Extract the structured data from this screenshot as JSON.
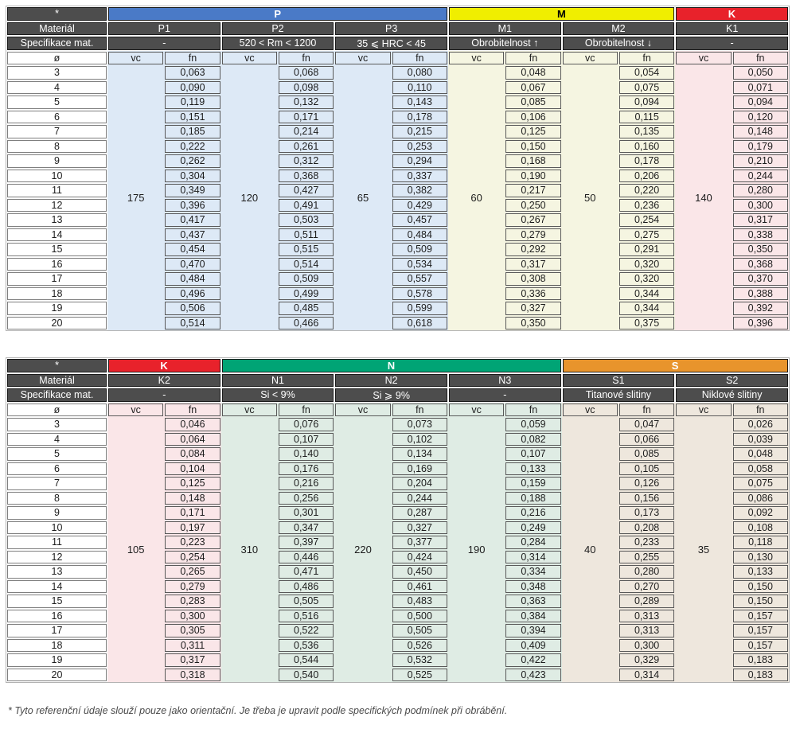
{
  "footnote": "* Tyto referenční údaje slouží pouze jako orientační. Je třeba je upravit podle specifických podmínek při obrábění.",
  "labels": {
    "corner": "*",
    "material_row": "Materiál",
    "spec_row": "Specifikace mat.",
    "diameter": "ø",
    "vc": "vc",
    "fn": "fn"
  },
  "diameters": [
    "3",
    "4",
    "5",
    "6",
    "7",
    "8",
    "9",
    "10",
    "11",
    "12",
    "13",
    "14",
    "15",
    "16",
    "17",
    "18",
    "19",
    "20"
  ],
  "colors": {
    "header_dark": "#4d4d4d",
    "p_blue": "#4a7ac7",
    "m_yellow": "#f0ee00",
    "k_red": "#e8222b",
    "n_green": "#00a475",
    "s_orange": "#e8942c"
  },
  "tables": [
    {
      "groups": [
        {
          "label": "P",
          "header_bg": "#4a7ac7",
          "header_fg": "#ffffff",
          "cell_bg": "#dde9f6",
          "materials": [
            {
              "name": "P1",
              "spec": "-",
              "vc": "175",
              "fn": [
                "0,063",
                "0,090",
                "0,119",
                "0,151",
                "0,185",
                "0,222",
                "0,262",
                "0,304",
                "0,349",
                "0,396",
                "0,417",
                "0,437",
                "0,454",
                "0,470",
                "0,484",
                "0,496",
                "0,506",
                "0,514"
              ]
            },
            {
              "name": "P2",
              "spec": "520 < Rm < 1200",
              "vc": "120",
              "fn": [
                "0,068",
                "0,098",
                "0,132",
                "0,171",
                "0,214",
                "0,261",
                "0,312",
                "0,368",
                "0,427",
                "0,491",
                "0,503",
                "0,511",
                "0,515",
                "0,514",
                "0,509",
                "0,499",
                "0,485",
                "0,466"
              ]
            },
            {
              "name": "P3",
              "spec": "35 ⩽ HRC < 45",
              "vc": "65",
              "fn": [
                "0,080",
                "0,110",
                "0,143",
                "0,178",
                "0,215",
                "0,253",
                "0,294",
                "0,337",
                "0,382",
                "0,429",
                "0,457",
                "0,484",
                "0,509",
                "0,534",
                "0,557",
                "0,578",
                "0,599",
                "0,618"
              ]
            }
          ]
        },
        {
          "label": "M",
          "header_bg": "#f0ee00",
          "header_fg": "#000000",
          "cell_bg": "#f5f5e1",
          "materials": [
            {
              "name": "M1",
              "spec": "Obrobitelnost ↑",
              "vc": "60",
              "fn": [
                "0,048",
                "0,067",
                "0,085",
                "0,106",
                "0,125",
                "0,150",
                "0,168",
                "0,190",
                "0,217",
                "0,250",
                "0,267",
                "0,279",
                "0,292",
                "0,317",
                "0,308",
                "0,336",
                "0,327",
                "0,350"
              ]
            },
            {
              "name": "M2",
              "spec": "Obrobitelnost ↓",
              "vc": "50",
              "fn": [
                "0,054",
                "0,075",
                "0,094",
                "0,115",
                "0,135",
                "0,160",
                "0,178",
                "0,206",
                "0,220",
                "0,236",
                "0,254",
                "0,275",
                "0,291",
                "0,320",
                "0,320",
                "0,344",
                "0,344",
                "0,375"
              ]
            }
          ]
        },
        {
          "label": "K",
          "header_bg": "#e8222b",
          "header_fg": "#ffffff",
          "cell_bg": "#fae6e8",
          "materials": [
            {
              "name": "K1",
              "spec": "-",
              "vc": "140",
              "fn": [
                "0,050",
                "0,071",
                "0,094",
                "0,120",
                "0,148",
                "0,179",
                "0,210",
                "0,244",
                "0,280",
                "0,300",
                "0,317",
                "0,338",
                "0,350",
                "0,368",
                "0,370",
                "0,388",
                "0,392",
                "0,396"
              ]
            }
          ]
        }
      ]
    },
    {
      "groups": [
        {
          "label": "K",
          "header_bg": "#e8222b",
          "header_fg": "#ffffff",
          "cell_bg": "#fae6e8",
          "materials": [
            {
              "name": "K2",
              "spec": "-",
              "vc": "105",
              "fn": [
                "0,046",
                "0,064",
                "0,084",
                "0,104",
                "0,125",
                "0,148",
                "0,171",
                "0,197",
                "0,223",
                "0,254",
                "0,265",
                "0,279",
                "0,283",
                "0,300",
                "0,305",
                "0,311",
                "0,317",
                "0,318"
              ]
            }
          ]
        },
        {
          "label": "N",
          "header_bg": "#00a475",
          "header_fg": "#ffffff",
          "cell_bg": "#dfece4",
          "materials": [
            {
              "name": "N1",
              "spec": "Si < 9%",
              "vc": "310",
              "fn": [
                "0,076",
                "0,107",
                "0,140",
                "0,176",
                "0,216",
                "0,256",
                "0,301",
                "0,347",
                "0,397",
                "0,446",
                "0,471",
                "0,486",
                "0,505",
                "0,516",
                "0,522",
                "0,536",
                "0,544",
                "0,540"
              ]
            },
            {
              "name": "N2",
              "spec": "Si ⩾ 9%",
              "vc": "220",
              "fn": [
                "0,073",
                "0,102",
                "0,134",
                "0,169",
                "0,204",
                "0,244",
                "0,287",
                "0,327",
                "0,377",
                "0,424",
                "0,450",
                "0,461",
                "0,483",
                "0,500",
                "0,505",
                "0,526",
                "0,532",
                "0,525"
              ]
            },
            {
              "name": "N3",
              "spec": "-",
              "vc": "190",
              "fn": [
                "0,059",
                "0,082",
                "0,107",
                "0,133",
                "0,159",
                "0,188",
                "0,216",
                "0,249",
                "0,284",
                "0,314",
                "0,334",
                "0,348",
                "0,363",
                "0,384",
                "0,394",
                "0,409",
                "0,422",
                "0,423"
              ]
            }
          ]
        },
        {
          "label": "S",
          "header_bg": "#e8942c",
          "header_fg": "#ffffff",
          "cell_bg": "#eee7dd",
          "materials": [
            {
              "name": "S1",
              "spec": "Titanové slitiny",
              "vc": "40",
              "fn": [
                "0,047",
                "0,066",
                "0,085",
                "0,105",
                "0,126",
                "0,156",
                "0,173",
                "0,208",
                "0,233",
                "0,255",
                "0,280",
                "0,270",
                "0,289",
                "0,313",
                "0,313",
                "0,300",
                "0,329",
                "0,314"
              ]
            },
            {
              "name": "S2",
              "spec": "Niklové slitiny",
              "vc": "35",
              "fn": [
                "0,026",
                "0,039",
                "0,048",
                "0,058",
                "0,075",
                "0,086",
                "0,092",
                "0,108",
                "0,118",
                "0,130",
                "0,133",
                "0,150",
                "0,150",
                "0,157",
                "0,157",
                "0,157",
                "0,183",
                "0,183"
              ]
            }
          ]
        }
      ]
    }
  ]
}
